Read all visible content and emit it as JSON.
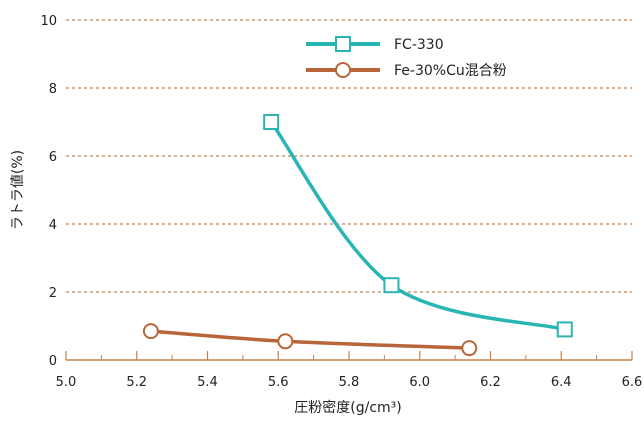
{
  "chart_data": {
    "type": "line",
    "title": "",
    "xlabel": "圧粉密度(g/cm³)",
    "ylabel": "ラトラ値(%)",
    "xlim": [
      5.0,
      6.6
    ],
    "ylim": [
      0,
      10
    ],
    "x_ticks": [
      "5.0",
      "5.2",
      "5.4",
      "5.6",
      "5.8",
      "6.0",
      "6.2",
      "6.4",
      "6.6"
    ],
    "y_ticks": [
      "0",
      "2",
      "4",
      "6",
      "8",
      "10"
    ],
    "grid": "horizontal-dashed",
    "legend_position": "top-right",
    "series": [
      {
        "name": "FC-330",
        "marker": "square",
        "color": "#2ab5b5",
        "x": [
          5.58,
          5.92,
          6.41
        ],
        "y": [
          7.0,
          2.2,
          0.9
        ]
      },
      {
        "name": "Fe-30%Cu混合粉",
        "marker": "circle",
        "color": "#b8653a",
        "x": [
          5.24,
          5.62,
          6.14
        ],
        "y": [
          0.85,
          0.55,
          0.35
        ]
      }
    ],
    "colors": {
      "axis": "#c8824c",
      "grid": "#c8824c",
      "text": "#222222"
    }
  }
}
